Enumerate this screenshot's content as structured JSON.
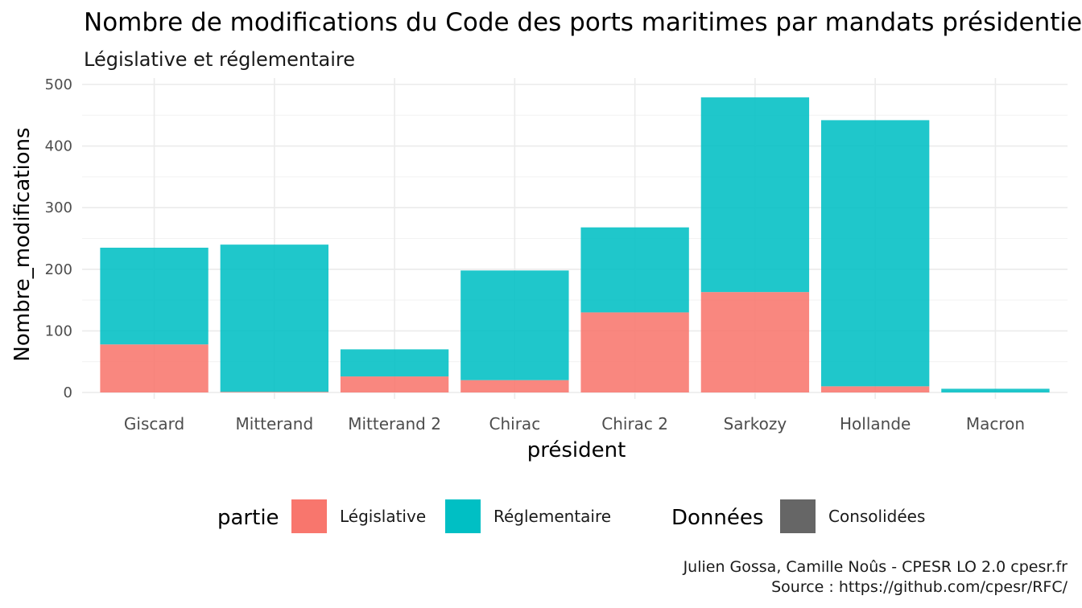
{
  "chart_data": {
    "type": "bar",
    "stacked": true,
    "title": "Nombre de modifications du Code des ports maritimes par mandats présidentiels",
    "subtitle": "Législative et réglementaire",
    "xlabel": "président",
    "ylabel": "Nombre_modifications",
    "ylim": [
      0,
      500
    ],
    "yticks": [
      0,
      100,
      200,
      300,
      400,
      500
    ],
    "categories": [
      "Giscard",
      "Mitterand",
      "Mitterand 2",
      "Chirac",
      "Chirac 2",
      "Sarkozy",
      "Hollande",
      "Macron"
    ],
    "series": [
      {
        "name": "Législative",
        "color": "#F8766D",
        "values": [
          78,
          1,
          26,
          20,
          130,
          163,
          10,
          0
        ]
      },
      {
        "name": "Réglementaire",
        "color": "#00BFC4",
        "values": [
          157,
          239,
          44,
          178,
          138,
          316,
          432,
          6
        ]
      }
    ],
    "grid": true,
    "legend_position": "bottom",
    "legend": {
      "groups": [
        {
          "title": "partie",
          "items": [
            {
              "label": "Législative",
              "color": "#F8766D"
            },
            {
              "label": "Réglementaire",
              "color": "#00BFC4"
            }
          ]
        },
        {
          "title": "Données",
          "items": [
            {
              "label": "Consolidées",
              "color": "#666666"
            }
          ]
        }
      ]
    },
    "caption": [
      "Julien Gossa, Camille Noûs - CPESR LO 2.0 cpesr.fr",
      "Source : https://github.com/cpesr/RFC/"
    ]
  }
}
